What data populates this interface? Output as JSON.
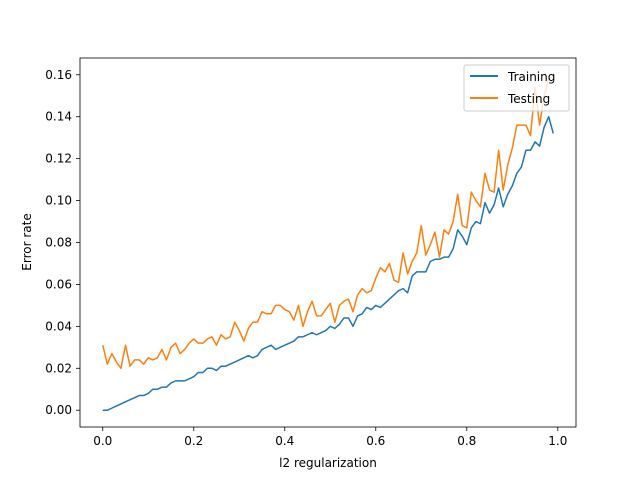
{
  "chart_data": {
    "type": "line",
    "title": "",
    "xlabel": "l2 regularization",
    "ylabel": "Error rate",
    "xlim": [
      -0.05,
      1.04
    ],
    "ylim": [
      -0.008,
      0.168
    ],
    "xticks": [
      "0.0",
      "0.2",
      "0.4",
      "0.6",
      "0.8",
      "1.0"
    ],
    "yticks": [
      "0.00",
      "0.02",
      "0.04",
      "0.06",
      "0.08",
      "0.10",
      "0.12",
      "0.14",
      "0.16"
    ],
    "grid": false,
    "legend_position": "top-right",
    "x": [
      0.0,
      0.01,
      0.02,
      0.03,
      0.04,
      0.05,
      0.06,
      0.07,
      0.08,
      0.09,
      0.1,
      0.11,
      0.12,
      0.13,
      0.14,
      0.15,
      0.16,
      0.17,
      0.18,
      0.19,
      0.2,
      0.21,
      0.22,
      0.23,
      0.24,
      0.25,
      0.26,
      0.27,
      0.28,
      0.29,
      0.3,
      0.31,
      0.32,
      0.33,
      0.34,
      0.35,
      0.36,
      0.37,
      0.38,
      0.39,
      0.4,
      0.41,
      0.42,
      0.43,
      0.44,
      0.45,
      0.46,
      0.47,
      0.48,
      0.49,
      0.5,
      0.51,
      0.52,
      0.53,
      0.54,
      0.55,
      0.56,
      0.57,
      0.58,
      0.59,
      0.6,
      0.61,
      0.62,
      0.63,
      0.64,
      0.65,
      0.66,
      0.67,
      0.68,
      0.69,
      0.7,
      0.71,
      0.72,
      0.73,
      0.74,
      0.75,
      0.76,
      0.77,
      0.78,
      0.79,
      0.8,
      0.81,
      0.82,
      0.83,
      0.84,
      0.85,
      0.86,
      0.87,
      0.88,
      0.89,
      0.9,
      0.91,
      0.92,
      0.93,
      0.94,
      0.95,
      0.96,
      0.97,
      0.98,
      0.99
    ],
    "series": [
      {
        "name": "Training",
        "color": "#1f77b4",
        "values": [
          0.0,
          0.0,
          0.001,
          0.002,
          0.003,
          0.004,
          0.005,
          0.006,
          0.007,
          0.007,
          0.008,
          0.01,
          0.01,
          0.011,
          0.011,
          0.013,
          0.014,
          0.014,
          0.014,
          0.015,
          0.016,
          0.018,
          0.018,
          0.02,
          0.02,
          0.019,
          0.021,
          0.021,
          0.022,
          0.023,
          0.024,
          0.025,
          0.026,
          0.025,
          0.026,
          0.029,
          0.03,
          0.031,
          0.029,
          0.03,
          0.031,
          0.032,
          0.033,
          0.035,
          0.035,
          0.036,
          0.037,
          0.036,
          0.037,
          0.038,
          0.04,
          0.039,
          0.041,
          0.044,
          0.044,
          0.04,
          0.045,
          0.046,
          0.049,
          0.048,
          0.05,
          0.049,
          0.051,
          0.053,
          0.055,
          0.057,
          0.058,
          0.056,
          0.064,
          0.066,
          0.066,
          0.066,
          0.071,
          0.072,
          0.072,
          0.073,
          0.073,
          0.077,
          0.086,
          0.083,
          0.079,
          0.087,
          0.09,
          0.089,
          0.099,
          0.094,
          0.098,
          0.106,
          0.097,
          0.103,
          0.107,
          0.113,
          0.116,
          0.124,
          0.124,
          0.128,
          0.126,
          0.135,
          0.14,
          0.132
        ]
      },
      {
        "name": "Testing",
        "color": "#ff7f0e",
        "values": [
          0.031,
          0.022,
          0.027,
          0.023,
          0.02,
          0.031,
          0.021,
          0.024,
          0.024,
          0.022,
          0.025,
          0.024,
          0.025,
          0.029,
          0.024,
          0.03,
          0.032,
          0.027,
          0.029,
          0.032,
          0.034,
          0.032,
          0.032,
          0.034,
          0.035,
          0.031,
          0.036,
          0.034,
          0.035,
          0.042,
          0.038,
          0.033,
          0.039,
          0.042,
          0.042,
          0.047,
          0.046,
          0.046,
          0.05,
          0.05,
          0.048,
          0.047,
          0.043,
          0.05,
          0.04,
          0.047,
          0.052,
          0.045,
          0.045,
          0.048,
          0.051,
          0.042,
          0.05,
          0.052,
          0.053,
          0.047,
          0.055,
          0.058,
          0.056,
          0.057,
          0.063,
          0.068,
          0.066,
          0.07,
          0.062,
          0.061,
          0.075,
          0.065,
          0.071,
          0.075,
          0.088,
          0.074,
          0.079,
          0.085,
          0.073,
          0.086,
          0.084,
          0.09,
          0.103,
          0.088,
          0.087,
          0.104,
          0.1,
          0.097,
          0.113,
          0.105,
          0.104,
          0.124,
          0.105,
          0.117,
          0.125,
          0.136,
          0.136,
          0.136,
          0.131,
          0.154,
          0.136,
          0.15,
          0.158,
          0.159
        ]
      }
    ]
  }
}
